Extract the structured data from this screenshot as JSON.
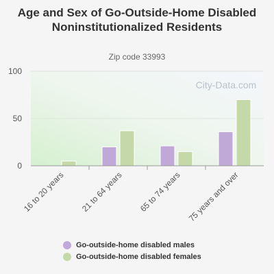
{
  "chart_data": {
    "type": "bar",
    "title": "Age and Sex of Go-Outside-Home Disabled Noninstitutionalized Residents",
    "subtitle": "Zip code 33993",
    "categories": [
      "16 to 20 years",
      "21 to 64 years",
      "65 to 74 years",
      "75 years and over"
    ],
    "series": [
      {
        "name": "Go-outside-home disabled males",
        "values": [
          0,
          20,
          21,
          36
        ],
        "color": "#c0a8d9"
      },
      {
        "name": "Go-outside-home disabled females",
        "values": [
          5,
          37,
          15,
          70
        ],
        "color": "#c5d9a8"
      }
    ],
    "yticks": [
      0,
      50,
      100
    ],
    "ylim": [
      0,
      100
    ],
    "grid": true,
    "legend_position": "bottom",
    "watermark": "City-Data.com"
  }
}
